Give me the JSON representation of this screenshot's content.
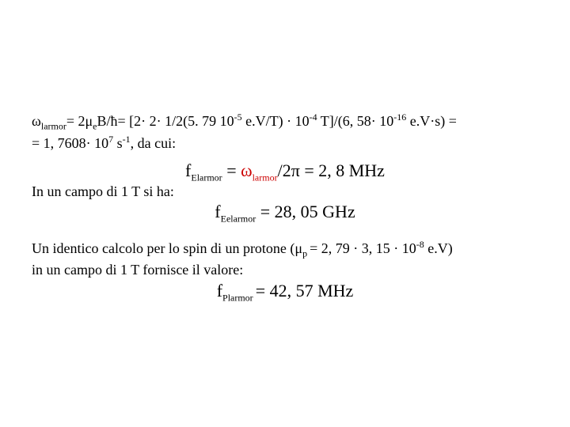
{
  "text_color": "#000000",
  "accent_color": "#cc0000",
  "background_color": "#ffffff",
  "eq1": {
    "prefix_omega": "ω",
    "prefix_sub": "larmor",
    "eq_a": "= 2",
    "mu": "μ",
    "mu_sub": "e",
    "bh": "B/ħ= [2· 2· 1/2(5. 79 10",
    "exp1": "-5",
    "mid1": " e.V/T) · 10",
    "exp2": "-4",
    "mid2": " T]/(6, 58· 10",
    "exp3": "-16",
    "tail": " e.V·s) =",
    "line2a": "= 1, 7608· 10",
    "line2_exp": "7",
    "line2b": " s",
    "line2_exp2": "-1",
    "line2c": ", da cui:"
  },
  "eq2": {
    "f": "f",
    "fsub": "Elarmor",
    "mid": " = ",
    "omega": "ω",
    "omega_sub": "larmor",
    "over": "/2",
    "pi": "π",
    "val": " = 2, 8 MHz"
  },
  "line3": "In un campo di 1 T si ha:",
  "eq3": {
    "f": "f",
    "fsub": "Eelarmor",
    "val": " = 28, 05 GHz"
  },
  "para2a": "Un identico calcolo per lo spin di un protone (",
  "para2_mu": "μ",
  "para2_psub": "p ",
  "para2b": "= 2, 79 · 3, 15 · 10",
  "para2_exp": "-8",
  "para2c": " e.V)",
  "para2d": "in un campo di 1 T fornisce il valore:",
  "eq4": {
    "f": "f",
    "fsub": "Plarmor ",
    "val": "= 42, 57 MHz"
  }
}
